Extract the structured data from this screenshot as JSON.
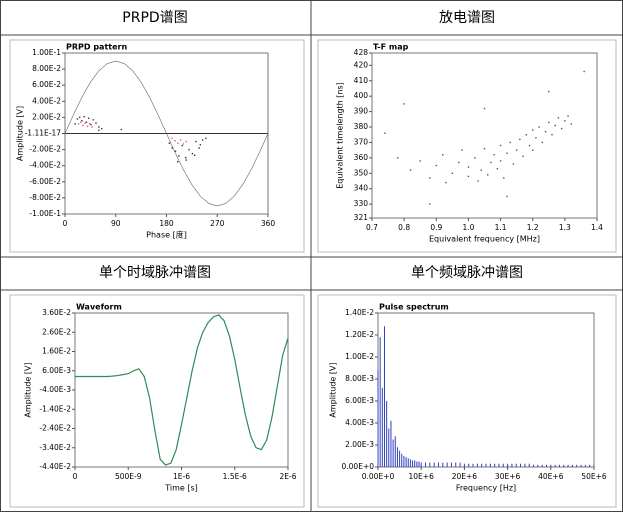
{
  "table": {
    "headers": [
      "PRPD谱图",
      "放电谱图",
      "单个时域脉冲谱图",
      "单个频域脉冲谱图"
    ]
  },
  "chart_data": [
    {
      "type": "scatter",
      "title": "PRPD pattern",
      "x_label": "Phase [度]",
      "y_label": "Amplitude [V]",
      "xlim": [
        0,
        360
      ],
      "xticks": [
        0,
        90,
        180,
        270,
        360
      ],
      "ylim": [
        -0.1,
        0.1
      ],
      "yticks": [
        {
          "value": 0.1,
          "label": "1.00E-1"
        },
        {
          "value": 0.08,
          "label": "8.00E-2"
        },
        {
          "value": 0.06,
          "label": "6.00E-2"
        },
        {
          "value": 0.04,
          "label": "4.00E-2"
        },
        {
          "value": 0.02,
          "label": "2.00E-2"
        },
        {
          "value": -1.11e-17,
          "label": "-1.11E-17"
        },
        {
          "value": -0.02,
          "label": "-2.00E-2"
        },
        {
          "value": -0.04,
          "label": "-4.00E-2"
        },
        {
          "value": -0.06,
          "label": "-6.00E-2"
        },
        {
          "value": -0.08,
          "label": "-8.00E-2"
        },
        {
          "value": -0.1,
          "label": "-1.00E-1"
        }
      ],
      "series": [
        {
          "mode": "line",
          "color": "#666666",
          "x": [
            0,
            15,
            30,
            45,
            60,
            75,
            90,
            105,
            120,
            135,
            150,
            165,
            180,
            195,
            210,
            225,
            240,
            255,
            270,
            285,
            300,
            315,
            330,
            345,
            360
          ],
          "values": [
            0,
            0.0233,
            0.045,
            0.0636,
            0.0779,
            0.0869,
            0.09,
            0.0869,
            0.0779,
            0.0636,
            0.045,
            0.0233,
            0,
            -0.0233,
            -0.045,
            -0.0636,
            -0.0779,
            -0.0869,
            -0.09,
            -0.0869,
            -0.0779,
            -0.0636,
            -0.045,
            -0.0233,
            0
          ]
        },
        {
          "mode": "points",
          "color": "#333333",
          "x": [
            18,
            22,
            26,
            30,
            34,
            38,
            42,
            46,
            50,
            55,
            60,
            65,
            185,
            190,
            196,
            202,
            208,
            214,
            220,
            226,
            232,
            238,
            244,
            250,
            200,
            215,
            230,
            240,
            60,
            100
          ],
          "values": [
            0.012,
            0.018,
            0.02,
            0.016,
            0.021,
            0.014,
            0.019,
            0.011,
            0.017,
            0.013,
            0.008,
            0.006,
            -0.012,
            -0.018,
            -0.022,
            -0.028,
            -0.015,
            -0.03,
            -0.02,
            -0.025,
            -0.01,
            -0.018,
            -0.008,
            -0.006,
            -0.035,
            -0.033,
            -0.027,
            -0.014,
            0.004,
            0.005
          ]
        },
        {
          "mode": "points",
          "color": "#e05a6a",
          "x": [
            24,
            28,
            32,
            36,
            40,
            44,
            48,
            190,
            195,
            200,
            205,
            210,
            215
          ],
          "values": [
            0.012,
            0.014,
            0.01,
            0.013,
            0.009,
            0.012,
            0.008,
            -0.006,
            -0.009,
            -0.012,
            -0.008,
            -0.013,
            -0.01
          ]
        }
      ]
    },
    {
      "type": "scatter",
      "title": "T-F map",
      "x_label": "Equivalent frequency [MHz]",
      "y_label": "Equivalent timelength [ns]",
      "xlim": [
        0.7,
        1.4
      ],
      "xticks": [
        0.7,
        0.8,
        0.9,
        {
          "value": 1,
          "label": "1.0"
        },
        1.1,
        1.2,
        1.3,
        1.4
      ],
      "ylim": [
        321,
        428
      ],
      "yticks": [
        428,
        420,
        410,
        400,
        390,
        380,
        370,
        360,
        350,
        340,
        330,
        321
      ],
      "series": [
        {
          "mode": "points",
          "color": "#555555",
          "x": [
            0.74,
            0.78,
            0.82,
            0.85,
            0.88,
            0.9,
            0.92,
            0.93,
            0.95,
            0.97,
            0.98,
            1.0,
            1.0,
            1.02,
            1.03,
            1.04,
            1.05,
            1.06,
            1.07,
            1.08,
            1.09,
            1.1,
            1.1,
            1.11,
            1.12,
            1.13,
            1.14,
            1.15,
            1.16,
            1.17,
            1.18,
            1.19,
            1.2,
            1.2,
            1.21,
            1.22,
            1.23,
            1.24,
            1.25,
            1.26,
            1.27,
            1.28,
            1.29,
            1.3,
            1.31,
            1.32,
            1.36,
            0.8,
            1.05,
            1.25,
            0.88,
            1.12
          ],
          "values": [
            376,
            360,
            352,
            358,
            347,
            355,
            362,
            344,
            350,
            357,
            365,
            348,
            354,
            360,
            345,
            352,
            366,
            349,
            357,
            362,
            353,
            368,
            358,
            347,
            363,
            370,
            356,
            365,
            372,
            361,
            375,
            368,
            378,
            365,
            373,
            380,
            370,
            377,
            383,
            375,
            381,
            386,
            379,
            384,
            387,
            382,
            416,
            395,
            392,
            403,
            330,
            335
          ]
        }
      ]
    },
    {
      "type": "line",
      "title": "Waveform",
      "x_label": "Time [s]",
      "y_label": "Amplitude [V]",
      "color": "#2e8b57",
      "xlim": [
        0,
        2e-06
      ],
      "xticks": [
        0,
        {
          "value": 5e-07,
          "label": "500E-9"
        },
        {
          "value": 1e-06,
          "label": "1E-6"
        },
        {
          "value": 1.5e-06,
          "label": "1.5E-6"
        },
        {
          "value": 2e-06,
          "label": "2E-6"
        }
      ],
      "ylim": [
        -0.044,
        0.036
      ],
      "yticks": [
        {
          "value": 0.036,
          "label": "3.60E-2"
        },
        {
          "value": 0.026,
          "label": "2.60E-2"
        },
        {
          "value": 0.016,
          "label": "1.60E-2"
        },
        {
          "value": 0.006,
          "label": "6.00E-3"
        },
        {
          "value": -0.004,
          "label": "-4.00E-3"
        },
        {
          "value": -0.014,
          "label": "-1.40E-2"
        },
        {
          "value": -0.024,
          "label": "-2.40E-2"
        },
        {
          "value": -0.034,
          "label": "-3.40E-2"
        },
        {
          "value": -0.044,
          "label": "-4.40E-2"
        }
      ],
      "x": [
        0,
        5e-08,
        1e-07,
        1.5e-07,
        2e-07,
        2.5e-07,
        3e-07,
        3.5e-07,
        4e-07,
        4.5e-07,
        5e-07,
        5.5e-07,
        6e-07,
        6.5e-07,
        7e-07,
        7.5e-07,
        8e-07,
        8.5e-07,
        9e-07,
        9.5e-07,
        1e-06,
        1.05e-06,
        1.1e-06,
        1.15e-06,
        1.2e-06,
        1.25e-06,
        1.3e-06,
        1.35e-06,
        1.4e-06,
        1.45e-06,
        1.5e-06,
        1.55e-06,
        1.6e-06,
        1.65e-06,
        1.7e-06,
        1.75e-06,
        1.8e-06,
        1.85e-06,
        1.9e-06,
        1.95e-06,
        2e-06
      ],
      "values": [
        0.003,
        0.003,
        0.003,
        0.003,
        0.003,
        0.003,
        0.003,
        0.0032,
        0.0035,
        0.004,
        0.0045,
        0.006,
        0.007,
        0.003,
        -0.008,
        -0.025,
        -0.04,
        -0.043,
        -0.042,
        -0.035,
        -0.022,
        -0.008,
        0.006,
        0.018,
        0.026,
        0.031,
        0.034,
        0.035,
        0.032,
        0.024,
        0.012,
        -0.003,
        -0.017,
        -0.028,
        -0.034,
        -0.035,
        -0.03,
        -0.018,
        -0.002,
        0.014,
        0.023
      ]
    },
    {
      "type": "bar",
      "title": "Pulse spectrum",
      "x_label": "Frequency [Hz]",
      "y_label": "Amplitude [V]",
      "color": "#3040c0",
      "xlim": [
        0,
        50000000.0
      ],
      "xticks": [
        {
          "value": 0,
          "label": "0.00E+0"
        },
        {
          "value": 10000000.0,
          "label": "10E+6"
        },
        {
          "value": 20000000.0,
          "label": "20E+6"
        },
        {
          "value": 30000000.0,
          "label": "30E+6"
        },
        {
          "value": 40000000.0,
          "label": "40E+6"
        },
        {
          "value": 50000000.0,
          "label": "50E+6"
        }
      ],
      "ylim": [
        0,
        0.014
      ],
      "yticks": [
        {
          "value": 0.014,
          "label": "1.40E-2"
        },
        {
          "value": 0.012,
          "label": "1.20E-2"
        },
        {
          "value": 0.01,
          "label": "1.00E-2"
        },
        {
          "value": 0.008,
          "label": "8.00E-3"
        },
        {
          "value": 0.006,
          "label": "6.00E-3"
        },
        {
          "value": 0.004,
          "label": "4.00E-3"
        },
        {
          "value": 0.002,
          "label": "2.00E-3"
        },
        {
          "value": 0,
          "label": "0.00E+0"
        }
      ],
      "x": [
        0,
        500000.0,
        1000000.0,
        1500000.0,
        2000000.0,
        2500000.0,
        3000000.0,
        3500000.0,
        4000000.0,
        4500000.0,
        5000000.0,
        5500000.0,
        6000000.0,
        6500000.0,
        7000000.0,
        7500000.0,
        8000000.0,
        8500000.0,
        9000000.0,
        9500000.0,
        10000000.0,
        11000000.0,
        12000000.0,
        13000000.0,
        14000000.0,
        15000000.0,
        16000000.0,
        17000000.0,
        18000000.0,
        19000000.0,
        20000000.0,
        21000000.0,
        22000000.0,
        23000000.0,
        24000000.0,
        25000000.0,
        26000000.0,
        27000000.0,
        28000000.0,
        29000000.0,
        30000000.0,
        31000000.0,
        32000000.0,
        33000000.0,
        34000000.0,
        35000000.0,
        36000000.0,
        37000000.0,
        38000000.0,
        39000000.0,
        40000000.0,
        41000000.0,
        42000000.0,
        43000000.0,
        44000000.0,
        45000000.0,
        46000000.0,
        47000000.0,
        48000000.0,
        49000000.0,
        50000000.0
      ],
      "values": [
        0.0088,
        0.0118,
        0.0072,
        0.0128,
        0.006,
        0.0035,
        0.0042,
        0.0025,
        0.0028,
        0.0018,
        0.0015,
        0.0012,
        0.001,
        0.0009,
        0.0008,
        0.0007,
        0.0006,
        0.0006,
        0.0005,
        0.0005,
        0.0004,
        0.0004,
        0.0004,
        0.0004,
        0.0004,
        0.0004,
        0.0004,
        0.0004,
        0.0004,
        0.0004,
        0.0003,
        0.0003,
        0.0003,
        0.0003,
        0.0003,
        0.0003,
        0.0003,
        0.0003,
        0.0003,
        0.0003,
        0.0003,
        0.0003,
        0.0003,
        0.0003,
        0.0003,
        0.0003,
        0.0002,
        0.0002,
        0.0002,
        0.0002,
        0.0002,
        0.0002,
        0.0002,
        0.0002,
        0.0002,
        0.0002,
        0.0002,
        0.0002,
        0.0002,
        0.0002,
        0.0002
      ]
    }
  ]
}
